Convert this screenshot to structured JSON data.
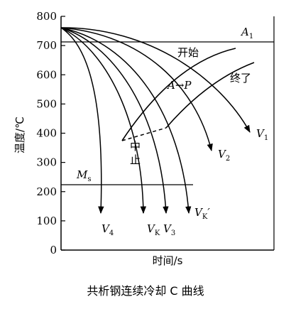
{
  "chart_data": {
    "type": "line",
    "xlabel": "时间/s",
    "ylabel": "温度/℃",
    "ylim": [
      0,
      800
    ],
    "y_ticks": [
      "0",
      "100",
      "200",
      "300",
      "400",
      "500",
      "600",
      "700",
      "800"
    ],
    "x_log_scale": true,
    "grid": false,
    "reference_lines": [
      {
        "name": "A1",
        "y": 720
      },
      {
        "name": "Ms",
        "y": 220
      }
    ],
    "transformation_curves": [
      {
        "name": "开始",
        "label": "开始"
      },
      {
        "name": "终了",
        "label": "终了"
      }
    ],
    "cooling_curves": [
      "V1",
      "V2",
      "V3",
      "VK'",
      "VK",
      "V4"
    ],
    "annotations": [
      "A→P",
      "中止"
    ]
  },
  "labels": {
    "A1_main": "A",
    "A1_sub": "1",
    "Ms_main": "M",
    "Ms_sub": "s",
    "start": "开始",
    "end": "终了",
    "arrow": "A→P",
    "stop_1": "中",
    "stop_2": "止",
    "V1_main": "V",
    "V1_sub": "1",
    "V2_main": "V",
    "V2_sub": "2",
    "V3_main": "V",
    "V3_sub": "3",
    "VKp_main": "V",
    "VKp_sub": "K",
    "VKp_prime": "′",
    "VK_main": "V",
    "VK_sub": "K",
    "V4_main": "V",
    "V4_sub": "4"
  },
  "caption": "共析钢连续冷却 C 曲线"
}
